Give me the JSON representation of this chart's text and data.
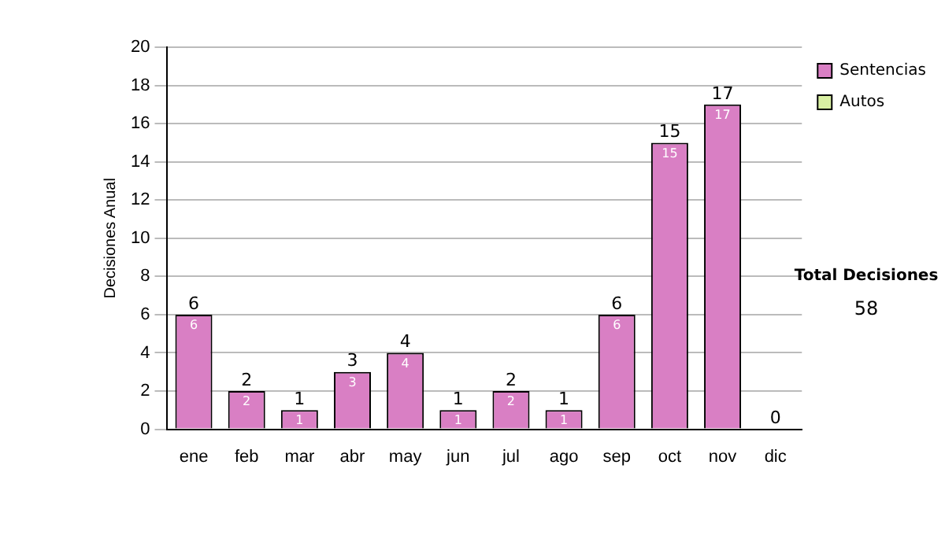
{
  "chart_data": {
    "type": "bar",
    "ylabel": "Decisiones Anual",
    "categories": [
      "ene",
      "feb",
      "mar",
      "abr",
      "may",
      "jun",
      "jul",
      "ago",
      "sep",
      "oct",
      "nov",
      "dic"
    ],
    "series": [
      {
        "name": "Sentencias",
        "color": "#d97fc4",
        "values": [
          6,
          2,
          1,
          3,
          4,
          1,
          2,
          1,
          6,
          15,
          17,
          0
        ],
        "value_labels": [
          "6",
          "2",
          "1",
          "3",
          "4",
          "1",
          "2",
          "1",
          "6",
          "15",
          "17",
          null
        ]
      },
      {
        "name": "Autos",
        "color": "#d9f0a3",
        "values": [
          0,
          0,
          0,
          0,
          0,
          0,
          0,
          0,
          0,
          0,
          0,
          0
        ]
      }
    ],
    "stacked": true,
    "totals": [
      "6",
      "2",
      "1",
      "3",
      "4",
      "1",
      "2",
      "1",
      "6",
      "15",
      "17",
      "0"
    ],
    "ylim": [
      0,
      20
    ],
    "yticks": [
      0,
      2,
      4,
      6,
      8,
      10,
      12,
      14,
      16,
      18,
      20
    ],
    "grid": "y",
    "legend": "right",
    "annotations": [
      "Total Decisiones",
      "58"
    ]
  }
}
